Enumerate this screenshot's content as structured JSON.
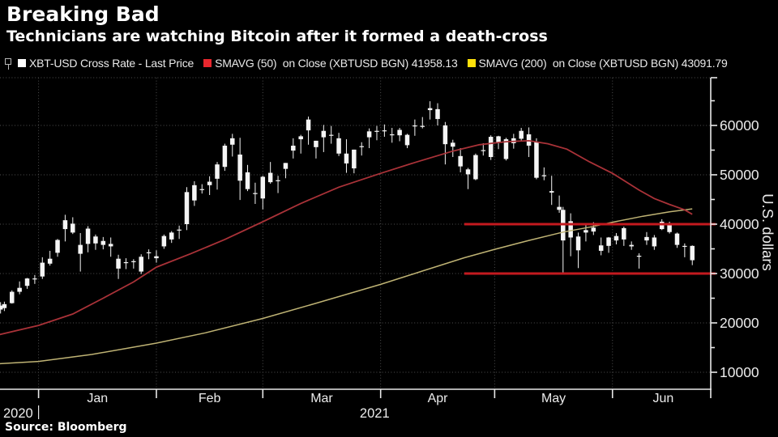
{
  "header": {
    "title": "Breaking Bad",
    "subtitle": "Technicians are watching Bitcoin after it formed a death-cross"
  },
  "legend": [
    {
      "label": "XBT-USD Cross Rate - Last Price",
      "color": "#ffffff"
    },
    {
      "label": "SMAVG (50)  on Close (XBTUSD BGN) 41958.13",
      "color": "#e8272e"
    },
    {
      "label": "SMAVG (200)  on Close (XBTUSD BGN) 43091.79",
      "color": "#ffe10a"
    }
  ],
  "source": "Source:  Bloomberg",
  "chart_data": {
    "type": "candlestick",
    "title": "Breaking Bad",
    "subtitle": "Technicians are watching Bitcoin after it formed a death-cross",
    "ylabel": "U.S. dollars",
    "y_ticks": [
      10000,
      20000,
      30000,
      40000,
      50000,
      60000
    ],
    "ylim": [
      6500,
      69700
    ],
    "grid": "dotted",
    "legend_position": "top-left",
    "x_month_labels": [
      "Jan",
      "Feb",
      "Mar",
      "Apr",
      "May",
      "Jun"
    ],
    "x_year_labels": [
      "2020",
      "2021"
    ],
    "x_month_start_days": [
      11,
      42,
      70,
      101,
      131,
      162
    ],
    "total_days": 187,
    "units": "thousands of U.S. dollars",
    "candles_format": "[day, open, high, low, close]",
    "candles": [
      [
        1,
        23.5,
        24.2,
        21.9,
        22.7
      ],
      [
        2,
        23.0,
        24.3,
        22.4,
        23.8
      ],
      [
        4,
        24.0,
        26.6,
        23.9,
        26.3
      ],
      [
        6,
        26.3,
        28.4,
        25.8,
        27.1
      ],
      [
        8,
        27.5,
        29.1,
        26.9,
        29.0
      ],
      [
        10,
        28.9,
        29.7,
        27.9,
        29.0
      ],
      [
        12,
        29.4,
        33.3,
        28.9,
        32.2
      ],
      [
        14,
        33.0,
        34.6,
        31.6,
        32.0
      ],
      [
        16,
        34.2,
        37.0,
        33.4,
        36.8
      ],
      [
        18,
        39.0,
        41.9,
        36.5,
        40.8
      ],
      [
        20,
        40.1,
        41.4,
        38.0,
        38.3
      ],
      [
        22,
        35.8,
        38.2,
        30.4,
        34.0
      ],
      [
        24,
        36.0,
        39.6,
        34.3,
        39.1
      ],
      [
        26,
        37.5,
        37.9,
        34.8,
        36.1
      ],
      [
        28,
        35.8,
        37.4,
        34.9,
        36.6
      ],
      [
        30,
        36.0,
        37.3,
        33.4,
        35.5
      ],
      [
        32,
        31.0,
        33.8,
        28.9,
        33.0
      ],
      [
        34,
        32.1,
        33.1,
        30.9,
        32.3
      ],
      [
        36,
        32.3,
        32.9,
        31.0,
        32.5
      ],
      [
        38,
        30.4,
        33.9,
        29.9,
        33.4
      ],
      [
        40,
        34.3,
        34.9,
        32.9,
        34.3
      ],
      [
        42,
        33.1,
        34.7,
        32.2,
        33.5
      ],
      [
        44,
        35.5,
        37.9,
        35.0,
        37.6
      ],
      [
        46,
        36.9,
        38.6,
        36.2,
        38.3
      ],
      [
        48,
        38.9,
        39.7,
        37.0,
        38.9
      ],
      [
        50,
        40.0,
        47.5,
        38.8,
        46.5
      ],
      [
        52,
        44.8,
        48.7,
        43.7,
        47.9
      ],
      [
        54,
        47.1,
        48.1,
        46.2,
        47.1
      ],
      [
        56,
        48.6,
        49.7,
        45.9,
        47.9
      ],
      [
        58,
        49.2,
        52.6,
        47.0,
        52.1
      ],
      [
        60,
        51.6,
        56.3,
        50.8,
        55.9
      ],
      [
        62,
        56.1,
        58.3,
        53.7,
        57.4
      ],
      [
        64,
        54.1,
        57.5,
        44.9,
        48.8
      ],
      [
        66,
        50.5,
        52.0,
        46.7,
        47.1
      ],
      [
        68,
        46.3,
        48.4,
        44.1,
        46.3
      ],
      [
        70,
        45.2,
        49.8,
        43.0,
        49.6
      ],
      [
        72,
        48.5,
        52.6,
        48.2,
        50.4
      ],
      [
        74,
        48.9,
        49.8,
        46.3,
        48.9
      ],
      [
        76,
        51.2,
        52.4,
        49.3,
        52.4
      ],
      [
        78,
        54.9,
        57.4,
        53.3,
        55.9
      ],
      [
        80,
        57.8,
        58.1,
        54.3,
        57.2
      ],
      [
        82,
        61.2,
        61.8,
        56.1,
        59.0
      ],
      [
        84,
        55.6,
        56.9,
        53.3,
        56.9
      ],
      [
        86,
        58.9,
        60.1,
        54.6,
        57.6
      ],
      [
        88,
        58.1,
        59.9,
        56.3,
        58.1
      ],
      [
        90,
        57.4,
        58.5,
        53.8,
        54.3
      ],
      [
        92,
        54.3,
        57.2,
        50.4,
        52.3
      ],
      [
        94,
        51.3,
        55.1,
        50.3,
        55.1
      ],
      [
        96,
        55.8,
        56.6,
        53.9,
        55.8
      ],
      [
        98,
        57.6,
        59.4,
        55.4,
        58.8
      ],
      [
        100,
        58.9,
        59.9,
        57.0,
        58.9
      ],
      [
        102,
        59.0,
        60.2,
        57.7,
        59.0
      ],
      [
        104,
        58.2,
        59.5,
        56.5,
        58.2
      ],
      [
        106,
        59.1,
        59.5,
        56.8,
        58.0
      ],
      [
        108,
        56.0,
        58.3,
        55.4,
        58.1
      ],
      [
        110,
        59.8,
        61.2,
        57.9,
        60.0
      ],
      [
        112,
        59.9,
        61.7,
        59.4,
        59.9
      ],
      [
        114,
        63.5,
        64.9,
        61.2,
        63.1
      ],
      [
        116,
        63.3,
        64.5,
        60.0,
        61.3
      ],
      [
        118,
        60.0,
        60.7,
        52.1,
        56.2
      ],
      [
        120,
        55.7,
        57.1,
        53.6,
        56.5
      ],
      [
        122,
        53.8,
        55.4,
        50.5,
        51.7
      ],
      [
        124,
        51.1,
        51.4,
        47.1,
        50.1
      ],
      [
        126,
        49.1,
        54.3,
        48.9,
        54.0
      ],
      [
        128,
        55.0,
        56.4,
        53.9,
        54.8
      ],
      [
        130,
        53.6,
        58.0,
        53.0,
        57.7
      ],
      [
        132,
        57.8,
        57.9,
        55.2,
        56.6
      ],
      [
        134,
        57.2,
        57.5,
        52.9,
        53.2
      ],
      [
        136,
        57.4,
        58.3,
        55.3,
        56.4
      ],
      [
        138,
        57.3,
        59.5,
        56.9,
        58.9
      ],
      [
        140,
        58.2,
        59.6,
        53.6,
        55.9
      ],
      [
        142,
        56.7,
        57.4,
        49.1,
        49.4
      ],
      [
        144,
        49.7,
        51.5,
        48.9,
        49.9
      ],
      [
        146,
        46.4,
        49.8,
        43.9,
        46.7
      ],
      [
        148,
        43.5,
        45.8,
        42.3,
        42.9
      ],
      [
        149,
        42.9,
        43.5,
        30.0,
        36.7
      ],
      [
        151,
        40.6,
        42.2,
        33.5,
        37.3
      ],
      [
        153,
        37.5,
        38.3,
        31.1,
        34.7
      ],
      [
        155,
        38.8,
        39.8,
        36.5,
        38.3
      ],
      [
        157,
        39.3,
        40.4,
        37.8,
        38.5
      ],
      [
        159,
        35.7,
        37.3,
        33.7,
        34.6
      ],
      [
        161,
        35.6,
        37.4,
        34.2,
        37.3
      ],
      [
        163,
        36.7,
        38.2,
        35.9,
        37.6
      ],
      [
        165,
        39.2,
        39.5,
        35.6,
        36.9
      ],
      [
        167,
        35.5,
        36.5,
        34.8,
        35.8
      ],
      [
        169,
        33.6,
        34.1,
        31.0,
        33.4
      ],
      [
        171,
        37.4,
        38.4,
        35.8,
        36.7
      ],
      [
        173,
        37.3,
        37.8,
        34.8,
        35.5
      ],
      [
        175,
        39.0,
        41.0,
        38.8,
        40.5
      ],
      [
        177,
        40.2,
        40.5,
        38.1,
        38.4
      ],
      [
        179,
        38.1,
        38.3,
        35.2,
        35.8
      ],
      [
        181,
        35.5,
        36.1,
        33.3,
        35.6
      ],
      [
        183,
        35.6,
        35.7,
        31.7,
        32.7
      ]
    ],
    "series": [
      {
        "name": "SMAVG (50) on Close (XBTUSD BGN)",
        "last_value": 41958.13,
        "points": [
          [
            0,
            17.5
          ],
          [
            11,
            19.5
          ],
          [
            20,
            21.8
          ],
          [
            28,
            25.0
          ],
          [
            36,
            28.3
          ],
          [
            42,
            31.3
          ],
          [
            51,
            34.0
          ],
          [
            60,
            36.9
          ],
          [
            70,
            40.5
          ],
          [
            80,
            44.2
          ],
          [
            90,
            47.5
          ],
          [
            101,
            50.3
          ],
          [
            110,
            52.5
          ],
          [
            120,
            54.8
          ],
          [
            127,
            56.1
          ],
          [
            134,
            56.7
          ],
          [
            140,
            56.9
          ],
          [
            145,
            56.3
          ],
          [
            150,
            55.2
          ],
          [
            156,
            52.6
          ],
          [
            162,
            50.3
          ],
          [
            169,
            46.9
          ],
          [
            173,
            45.2
          ],
          [
            177,
            44.0
          ],
          [
            181,
            42.9
          ],
          [
            183,
            42.0
          ]
        ]
      },
      {
        "name": "SMAVG (200) on Close (XBTUSD BGN)",
        "last_value": 43091.79,
        "points": [
          [
            0,
            11.7
          ],
          [
            11,
            12.2
          ],
          [
            25,
            13.6
          ],
          [
            42,
            15.9
          ],
          [
            55,
            18.0
          ],
          [
            70,
            20.9
          ],
          [
            85,
            24.2
          ],
          [
            101,
            27.8
          ],
          [
            112,
            30.5
          ],
          [
            123,
            33.2
          ],
          [
            131,
            34.9
          ],
          [
            140,
            36.7
          ],
          [
            149,
            38.4
          ],
          [
            156,
            39.4
          ],
          [
            162,
            40.4
          ],
          [
            170,
            41.6
          ],
          [
            177,
            42.5
          ],
          [
            183,
            43.1
          ]
        ]
      }
    ],
    "hlines": [
      {
        "value": 40000,
        "start_day": 123
      },
      {
        "value": 30000,
        "start_day": 123
      }
    ],
    "colors": {
      "background": "#000000",
      "candle": "#f5f5f5",
      "sma50_line": "#a93238",
      "sma200_line": "#bfb374",
      "hline": "#c41a1f",
      "grid": "#4f4f4f",
      "axis": "#e8e8e8"
    }
  }
}
